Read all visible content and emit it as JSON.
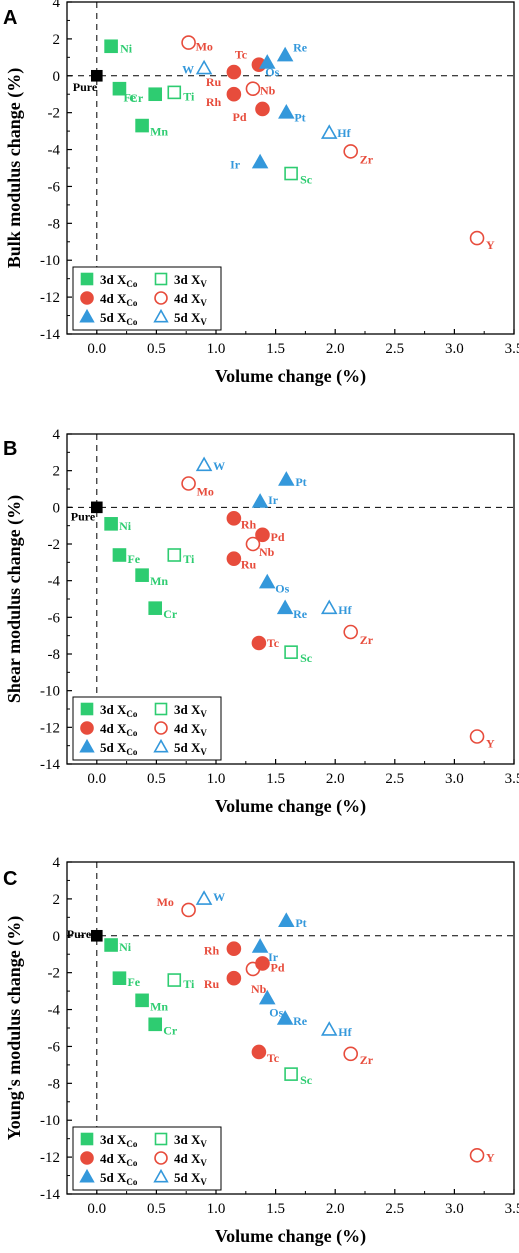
{
  "colors": {
    "green": "#2ECC71",
    "red": "#E74C3C",
    "blue": "#3498DB",
    "black": "#000000"
  },
  "legend_entries": [
    {
      "period": "3d",
      "type": "Co",
      "color": "green",
      "marker": "square",
      "filled": true
    },
    {
      "period": "3d",
      "type": "V",
      "color": "green",
      "marker": "square",
      "filled": false
    },
    {
      "period": "4d",
      "type": "Co",
      "color": "red",
      "marker": "circle",
      "filled": true
    },
    {
      "period": "4d",
      "type": "V",
      "color": "red",
      "marker": "circle",
      "filled": false
    },
    {
      "period": "5d",
      "type": "Co",
      "color": "blue",
      "marker": "triangle",
      "filled": true
    },
    {
      "period": "5d",
      "type": "V",
      "color": "blue",
      "marker": "triangle",
      "filled": false
    }
  ],
  "chart_data": [
    {
      "panel": "A",
      "type": "scatter",
      "xlabel": "Volume change (%)",
      "ylabel": "Bulk modulus change (%)",
      "xlim": [
        -0.25,
        3.5
      ],
      "ylim": [
        -14,
        4
      ],
      "xticks": [
        "0.0",
        "0.5",
        "1.0",
        "1.5",
        "2.0",
        "2.5",
        "3.0",
        "3.5"
      ],
      "yticks": [
        "-14",
        "-12",
        "-10",
        "-8",
        "-6",
        "-4",
        "-2",
        "0",
        "2",
        "4"
      ],
      "points": [
        {
          "label": "Pure",
          "x": 0.0,
          "y": 0.0,
          "color": "black",
          "marker": "square",
          "filled": true
        },
        {
          "label": "Ni",
          "x": 0.12,
          "y": 1.6,
          "color": "green",
          "marker": "square",
          "filled": true
        },
        {
          "label": "Fe",
          "x": 0.19,
          "y": -0.7,
          "color": "green",
          "marker": "square",
          "filled": true
        },
        {
          "label": "Cr",
          "x": 0.49,
          "y": -1.0,
          "color": "green",
          "marker": "square",
          "filled": true
        },
        {
          "label": "Mn",
          "x": 0.38,
          "y": -2.7,
          "color": "green",
          "marker": "square",
          "filled": true
        },
        {
          "label": "Ti",
          "x": 0.65,
          "y": -0.9,
          "color": "green",
          "marker": "square",
          "filled": false
        },
        {
          "label": "Sc",
          "x": 1.63,
          "y": -5.3,
          "color": "green",
          "marker": "square",
          "filled": false
        },
        {
          "label": "Tc",
          "x": 1.36,
          "y": 0.6,
          "color": "red",
          "marker": "circle",
          "filled": true
        },
        {
          "label": "Ru",
          "x": 1.15,
          "y": 0.2,
          "color": "red",
          "marker": "circle",
          "filled": true
        },
        {
          "label": "Rh",
          "x": 1.15,
          "y": -1.0,
          "color": "red",
          "marker": "circle",
          "filled": true
        },
        {
          "label": "Pd",
          "x": 1.39,
          "y": -1.8,
          "color": "red",
          "marker": "circle",
          "filled": true
        },
        {
          "label": "Mo",
          "x": 0.77,
          "y": 1.8,
          "color": "red",
          "marker": "circle",
          "filled": false
        },
        {
          "label": "Nb",
          "x": 1.31,
          "y": -0.7,
          "color": "red",
          "marker": "circle",
          "filled": false
        },
        {
          "label": "Zr",
          "x": 2.13,
          "y": -4.1,
          "color": "red",
          "marker": "circle",
          "filled": false
        },
        {
          "label": "Y",
          "x": 3.19,
          "y": -8.8,
          "color": "red",
          "marker": "circle",
          "filled": false
        },
        {
          "label": "Re",
          "x": 1.58,
          "y": 1.1,
          "color": "blue",
          "marker": "triangle",
          "filled": true
        },
        {
          "label": "Os",
          "x": 1.43,
          "y": 0.7,
          "color": "blue",
          "marker": "triangle",
          "filled": true
        },
        {
          "label": "Pt",
          "x": 1.59,
          "y": -2.0,
          "color": "blue",
          "marker": "triangle",
          "filled": true
        },
        {
          "label": "Ir",
          "x": 1.37,
          "y": -4.7,
          "color": "blue",
          "marker": "triangle",
          "filled": true
        },
        {
          "label": "W",
          "x": 0.9,
          "y": 0.4,
          "color": "blue",
          "marker": "triangle",
          "filled": false
        },
        {
          "label": "Hf",
          "x": 1.95,
          "y": -3.1,
          "color": "blue",
          "marker": "triangle",
          "filled": false
        }
      ]
    },
    {
      "panel": "B",
      "type": "scatter",
      "xlabel": "Volume change (%)",
      "ylabel": "Shear modulus change (%)",
      "xlim": [
        -0.25,
        3.5
      ],
      "ylim": [
        -14,
        4
      ],
      "xticks": [
        "0.0",
        "0.5",
        "1.0",
        "1.5",
        "2.0",
        "2.5",
        "3.0",
        "3.5"
      ],
      "yticks": [
        "-14",
        "-12",
        "-10",
        "-8",
        "-6",
        "-4",
        "-2",
        "0",
        "2",
        "4"
      ],
      "points": [
        {
          "label": "Pure",
          "x": 0.0,
          "y": 0.0,
          "color": "black",
          "marker": "square",
          "filled": true
        },
        {
          "label": "Ni",
          "x": 0.12,
          "y": -0.9,
          "color": "green",
          "marker": "square",
          "filled": true
        },
        {
          "label": "Fe",
          "x": 0.19,
          "y": -2.6,
          "color": "green",
          "marker": "square",
          "filled": true
        },
        {
          "label": "Mn",
          "x": 0.38,
          "y": -3.7,
          "color": "green",
          "marker": "square",
          "filled": true
        },
        {
          "label": "Cr",
          "x": 0.49,
          "y": -5.5,
          "color": "green",
          "marker": "square",
          "filled": true
        },
        {
          "label": "Ti",
          "x": 0.65,
          "y": -2.6,
          "color": "green",
          "marker": "square",
          "filled": false
        },
        {
          "label": "Sc",
          "x": 1.63,
          "y": -7.9,
          "color": "green",
          "marker": "square",
          "filled": false
        },
        {
          "label": "Rh",
          "x": 1.15,
          "y": -0.6,
          "color": "red",
          "marker": "circle",
          "filled": true
        },
        {
          "label": "Pd",
          "x": 1.39,
          "y": -1.5,
          "color": "red",
          "marker": "circle",
          "filled": true
        },
        {
          "label": "Ru",
          "x": 1.15,
          "y": -2.8,
          "color": "red",
          "marker": "circle",
          "filled": true
        },
        {
          "label": "Tc",
          "x": 1.36,
          "y": -7.4,
          "color": "red",
          "marker": "circle",
          "filled": true
        },
        {
          "label": "Mo",
          "x": 0.77,
          "y": 1.3,
          "color": "red",
          "marker": "circle",
          "filled": false
        },
        {
          "label": "Nb",
          "x": 1.31,
          "y": -2.0,
          "color": "red",
          "marker": "circle",
          "filled": false
        },
        {
          "label": "Zr",
          "x": 2.13,
          "y": -6.8,
          "color": "red",
          "marker": "circle",
          "filled": false
        },
        {
          "label": "Y",
          "x": 3.19,
          "y": -12.5,
          "color": "red",
          "marker": "circle",
          "filled": false
        },
        {
          "label": "Pt",
          "x": 1.59,
          "y": 1.5,
          "color": "blue",
          "marker": "triangle",
          "filled": true
        },
        {
          "label": "Ir",
          "x": 1.37,
          "y": 0.3,
          "color": "blue",
          "marker": "triangle",
          "filled": true
        },
        {
          "label": "Os",
          "x": 1.43,
          "y": -4.1,
          "color": "blue",
          "marker": "triangle",
          "filled": true
        },
        {
          "label": "Re",
          "x": 1.58,
          "y": -5.5,
          "color": "blue",
          "marker": "triangle",
          "filled": true
        },
        {
          "label": "W",
          "x": 0.9,
          "y": 2.3,
          "color": "blue",
          "marker": "triangle",
          "filled": false
        },
        {
          "label": "Hf",
          "x": 1.95,
          "y": -5.5,
          "color": "blue",
          "marker": "triangle",
          "filled": false
        }
      ]
    },
    {
      "panel": "C",
      "type": "scatter",
      "xlabel": "Volume change (%)",
      "ylabel": "Young's modulus change (%)",
      "xlim": [
        -0.25,
        3.5
      ],
      "ylim": [
        -14,
        4
      ],
      "xticks": [
        "0.0",
        "0.5",
        "1.0",
        "1.5",
        "2.0",
        "2.5",
        "3.0",
        "3.5"
      ],
      "yticks": [
        "-14",
        "-12",
        "-10",
        "-8",
        "-6",
        "-4",
        "-2",
        "0",
        "2",
        "4"
      ],
      "points": [
        {
          "label": "Pure",
          "x": 0.0,
          "y": 0.0,
          "color": "black",
          "marker": "square",
          "filled": true
        },
        {
          "label": "Ni",
          "x": 0.12,
          "y": -0.5,
          "color": "green",
          "marker": "square",
          "filled": true
        },
        {
          "label": "Fe",
          "x": 0.19,
          "y": -2.3,
          "color": "green",
          "marker": "square",
          "filled": true
        },
        {
          "label": "Mn",
          "x": 0.38,
          "y": -3.5,
          "color": "green",
          "marker": "square",
          "filled": true
        },
        {
          "label": "Cr",
          "x": 0.49,
          "y": -4.8,
          "color": "green",
          "marker": "square",
          "filled": true
        },
        {
          "label": "Ti",
          "x": 0.65,
          "y": -2.4,
          "color": "green",
          "marker": "square",
          "filled": false
        },
        {
          "label": "Sc",
          "x": 1.63,
          "y": -7.5,
          "color": "green",
          "marker": "square",
          "filled": false
        },
        {
          "label": "Rh",
          "x": 1.15,
          "y": -0.7,
          "color": "red",
          "marker": "circle",
          "filled": true
        },
        {
          "label": "Pd",
          "x": 1.39,
          "y": -1.5,
          "color": "red",
          "marker": "circle",
          "filled": true
        },
        {
          "label": "Ru",
          "x": 1.15,
          "y": -2.3,
          "color": "red",
          "marker": "circle",
          "filled": true
        },
        {
          "label": "Tc",
          "x": 1.36,
          "y": -6.3,
          "color": "red",
          "marker": "circle",
          "filled": true
        },
        {
          "label": "Mo",
          "x": 0.77,
          "y": 1.4,
          "color": "red",
          "marker": "circle",
          "filled": false
        },
        {
          "label": "Nb",
          "x": 1.31,
          "y": -1.8,
          "color": "red",
          "marker": "circle",
          "filled": false
        },
        {
          "label": "Zr",
          "x": 2.13,
          "y": -6.4,
          "color": "red",
          "marker": "circle",
          "filled": false
        },
        {
          "label": "Y",
          "x": 3.19,
          "y": -11.9,
          "color": "red",
          "marker": "circle",
          "filled": false
        },
        {
          "label": "Pt",
          "x": 1.59,
          "y": 0.8,
          "color": "blue",
          "marker": "triangle",
          "filled": true
        },
        {
          "label": "Ir",
          "x": 1.37,
          "y": -0.6,
          "color": "blue",
          "marker": "triangle",
          "filled": true
        },
        {
          "label": "Os",
          "x": 1.43,
          "y": -3.4,
          "color": "blue",
          "marker": "triangle",
          "filled": true
        },
        {
          "label": "Re",
          "x": 1.58,
          "y": -4.5,
          "color": "blue",
          "marker": "triangle",
          "filled": true
        },
        {
          "label": "W",
          "x": 0.9,
          "y": 2.0,
          "color": "blue",
          "marker": "triangle",
          "filled": false
        },
        {
          "label": "Hf",
          "x": 1.95,
          "y": -5.1,
          "color": "blue",
          "marker": "triangle",
          "filled": false
        }
      ]
    }
  ]
}
